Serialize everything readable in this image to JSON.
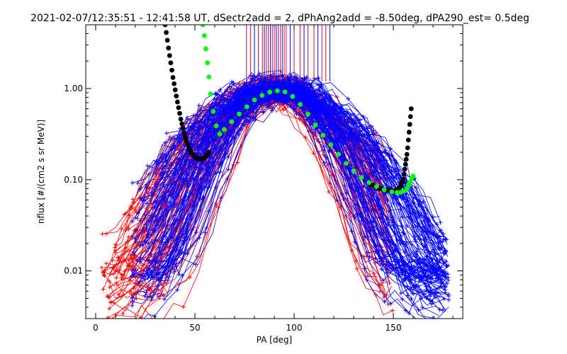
{
  "chart_data": {
    "type": "line",
    "title": "2021-02-07/12:35:51 - 12:41:58 UT, dSectr2add = 2, dPhAng2add = -8.50deg, dPA290_est=   0.5deg",
    "xlabel": "PA [deg]",
    "ylabel": "nflux [#/(cm2 s sr MeV)]",
    "xlim": [
      -5,
      185
    ],
    "ylim": [
      0.003,
      5.0
    ],
    "yscale": "log",
    "xticks": [
      0,
      50,
      100,
      150
    ],
    "xtick_labels": [
      "0",
      "50",
      "100",
      "150"
    ],
    "yticks": [
      0.01,
      0.1,
      1.0
    ],
    "ytick_labels": [
      "0.01",
      "0.10",
      "1.00"
    ],
    "grid": false,
    "legend": "none",
    "colors": {
      "red": "#ff0000",
      "blue": "#0000ff",
      "black": "#000000",
      "green": "#00ff00",
      "purple": "#8b1a6e"
    },
    "series": [
      {
        "color": "#000000",
        "style": "thick-dashed",
        "x": [
          35,
          37,
          39,
          41,
          43,
          45,
          47,
          49,
          51,
          53,
          55,
          57
        ],
        "y": [
          5.0,
          2.5,
          1.3,
          0.75,
          0.45,
          0.3,
          0.22,
          0.185,
          0.17,
          0.168,
          0.175,
          0.2
        ]
      },
      {
        "color": "#000000",
        "style": "thick-dashed",
        "x": [
          138,
          142,
          146,
          150,
          153,
          155,
          157,
          159
        ],
        "y": [
          0.09,
          0.082,
          0.077,
          0.075,
          0.08,
          0.1,
          0.2,
          0.6
        ]
      },
      {
        "color": "#00ff00",
        "style": "thick-dashed",
        "x": [
          54,
          55,
          56,
          57,
          58,
          60,
          62,
          65,
          70,
          75,
          80,
          85,
          90,
          95,
          100,
          105,
          110,
          115,
          120,
          125,
          130,
          135,
          140,
          145,
          150,
          153,
          155,
          157,
          158,
          159,
          160
        ],
        "y": [
          5.0,
          3.5,
          2.2,
          1.4,
          0.8,
          0.45,
          0.31,
          0.36,
          0.47,
          0.6,
          0.75,
          0.87,
          0.95,
          0.93,
          0.8,
          0.6,
          0.42,
          0.3,
          0.22,
          0.16,
          0.125,
          0.1,
          0.087,
          0.078,
          0.073,
          0.072,
          0.074,
          0.08,
          0.09,
          0.1,
          0.11
        ]
      }
    ],
    "scatter_bundles": [
      {
        "color": "#ff0000",
        "shape": "gaussian-lines-with-plus-markers",
        "peak_x": 90,
        "peak_y": 1.0,
        "x_range": [
          3,
          178
        ]
      },
      {
        "color": "#0000ff",
        "shape": "gaussian-lines-with-plus-markers",
        "peak_x": 92,
        "peak_y": 1.05,
        "x_range": [
          18,
          178
        ]
      }
    ],
    "vertical_markers": {
      "color_red": "#ff0000",
      "color_blue": "#0000ff",
      "color_purple": "#8b1a6e",
      "x": [
        76,
        78,
        80,
        82,
        84,
        85,
        86,
        87,
        88,
        89,
        90,
        91,
        92,
        93,
        94,
        95,
        96,
        98,
        100,
        103,
        105,
        107,
        110,
        112,
        114,
        116,
        118
      ],
      "y_top": 5.0,
      "y_bottom": 1.2
    }
  }
}
